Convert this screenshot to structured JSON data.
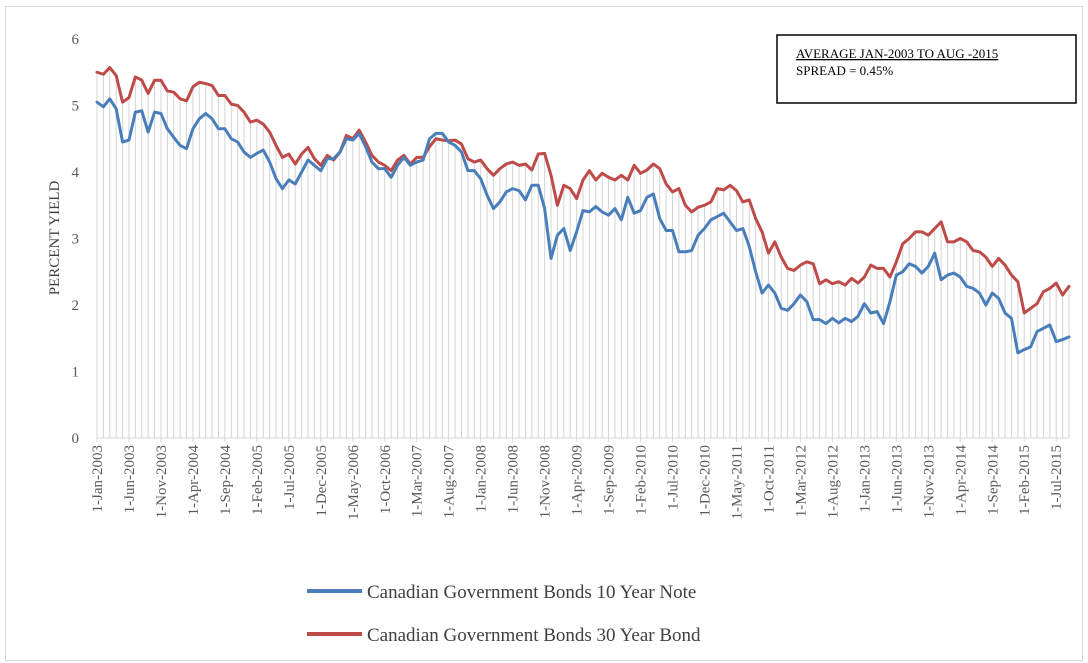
{
  "chart_data": {
    "type": "line",
    "title": "",
    "xlabel": "",
    "ylabel": "PERCENT YIELD",
    "ylim": [
      0,
      6
    ],
    "yticks": [
      0,
      1,
      2,
      3,
      4,
      5,
      6
    ],
    "x_start": "2003-01",
    "x_end": "2015-08",
    "xtick_labels": [
      "1-Jan-2003",
      "1-Jun-2003",
      "1-Nov-2003",
      "1-Apr-2004",
      "1-Sep-2004",
      "1-Feb-2005",
      "1-Jul-2005",
      "1-Dec-2005",
      "1-May-2006",
      "1-Oct-2006",
      "1-Mar-2007",
      "1-Aug-2007",
      "1-Jan-2008",
      "1-Jun-2008",
      "1-Nov-2008",
      "1-Apr-2009",
      "1-Sep-2009",
      "1-Feb-2010",
      "1-Jul-2010",
      "1-Dec-2010",
      "1-May-2011",
      "1-Oct-2011",
      "1-Mar-2012",
      "1-Aug-2012",
      "1-Jan-2013",
      "1-Jun-2013",
      "1-Nov-2013",
      "1-Apr-2014",
      "1-Sep-2014",
      "1-Feb-2015",
      "1-Jul-2015"
    ],
    "annotation": {
      "line1": "AVERAGE JAN-2003 TO AUG -2015",
      "line2": "SPREAD = 0.45%"
    },
    "legend_position": "bottom",
    "colors": {
      "ten_year": "#4a7ebb",
      "thirty_year": "#be4b48",
      "drop_lines": "#d4d4d4"
    },
    "series": [
      {
        "name": "Canadian Government Bonds 10 Year Note",
        "values": [
          5.05,
          4.98,
          5.1,
          4.95,
          4.45,
          4.48,
          4.9,
          4.92,
          4.6,
          4.9,
          4.88,
          4.65,
          4.52,
          4.4,
          4.35,
          4.65,
          4.8,
          4.88,
          4.8,
          4.65,
          4.65,
          4.5,
          4.45,
          4.3,
          4.22,
          4.28,
          4.33,
          4.15,
          3.9,
          3.75,
          3.88,
          3.82,
          4.0,
          4.18,
          4.1,
          4.02,
          4.2,
          4.2,
          4.3,
          4.5,
          4.48,
          4.58,
          4.38,
          4.15,
          4.05,
          4.05,
          3.92,
          4.1,
          4.22,
          4.1,
          4.15,
          4.18,
          4.5,
          4.58,
          4.58,
          4.45,
          4.4,
          4.3,
          4.02,
          4.02,
          3.9,
          3.65,
          3.45,
          3.55,
          3.7,
          3.75,
          3.72,
          3.58,
          3.8,
          3.8,
          3.45,
          2.7,
          3.05,
          3.15,
          2.82,
          3.1,
          3.42,
          3.4,
          3.48,
          3.4,
          3.35,
          3.45,
          3.28,
          3.62,
          3.38,
          3.42,
          3.62,
          3.67,
          3.3,
          3.12,
          3.12,
          2.8,
          2.8,
          2.82,
          3.05,
          3.15,
          3.28,
          3.33,
          3.38,
          3.25,
          3.12,
          3.15,
          2.88,
          2.5,
          2.18,
          2.3,
          2.18,
          1.95,
          1.92,
          2.02,
          2.15,
          2.05,
          1.78,
          1.78,
          1.72,
          1.8,
          1.73,
          1.8,
          1.75,
          1.83,
          2.02,
          1.88,
          1.9,
          1.72,
          2.05,
          2.45,
          2.5,
          2.62,
          2.58,
          2.48,
          2.58,
          2.78,
          2.38,
          2.45,
          2.48,
          2.42,
          2.28,
          2.25,
          2.18,
          2.0,
          2.18,
          2.1,
          1.88,
          1.8,
          1.28,
          1.33,
          1.37,
          1.6,
          1.65,
          1.7,
          1.45,
          1.48,
          1.52
        ]
      },
      {
        "name": "Canadian Government Bonds 30 Year Bond",
        "values": [
          5.5,
          5.47,
          5.57,
          5.45,
          5.05,
          5.12,
          5.43,
          5.38,
          5.18,
          5.38,
          5.38,
          5.22,
          5.2,
          5.1,
          5.07,
          5.28,
          5.35,
          5.33,
          5.3,
          5.15,
          5.15,
          5.02,
          5.0,
          4.9,
          4.75,
          4.78,
          4.72,
          4.6,
          4.4,
          4.22,
          4.27,
          4.12,
          4.27,
          4.37,
          4.2,
          4.1,
          4.25,
          4.18,
          4.3,
          4.55,
          4.5,
          4.63,
          4.45,
          4.25,
          4.15,
          4.1,
          4.02,
          4.18,
          4.25,
          4.12,
          4.22,
          4.22,
          4.38,
          4.5,
          4.48,
          4.47,
          4.48,
          4.42,
          4.2,
          4.15,
          4.18,
          4.05,
          3.95,
          4.05,
          4.12,
          4.15,
          4.1,
          4.12,
          4.03,
          4.27,
          4.28,
          3.95,
          3.5,
          3.8,
          3.75,
          3.6,
          3.88,
          4.02,
          3.88,
          3.98,
          3.92,
          3.88,
          3.95,
          3.88,
          4.1,
          3.98,
          4.03,
          4.12,
          4.05,
          3.82,
          3.7,
          3.75,
          3.5,
          3.4,
          3.47,
          3.5,
          3.55,
          3.75,
          3.73,
          3.8,
          3.72,
          3.55,
          3.58,
          3.3,
          3.1,
          2.78,
          2.95,
          2.72,
          2.55,
          2.52,
          2.6,
          2.65,
          2.62,
          2.32,
          2.38,
          2.32,
          2.35,
          2.3,
          2.4,
          2.33,
          2.42,
          2.6,
          2.55,
          2.55,
          2.42,
          2.65,
          2.92,
          3.0,
          3.1,
          3.1,
          3.05,
          3.15,
          3.25,
          2.95,
          2.95,
          3.0,
          2.95,
          2.82,
          2.8,
          2.72,
          2.58,
          2.7,
          2.6,
          2.45,
          2.35,
          1.88,
          1.95,
          2.02,
          2.2,
          2.25,
          2.33,
          2.15,
          2.28
        ]
      }
    ]
  }
}
